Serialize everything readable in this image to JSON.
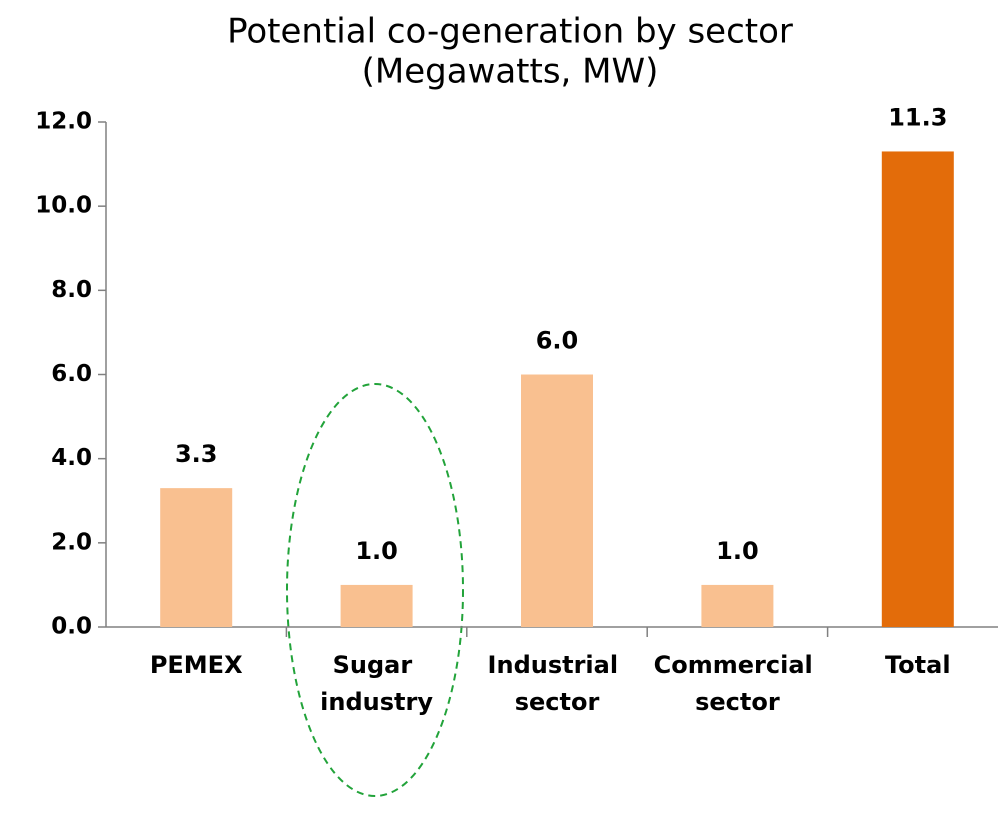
{
  "chart_data": {
    "type": "bar",
    "title": "Potential co-generation by sector",
    "subtitle": "(Megawatts, MW)",
    "categories": [
      "PEMEX",
      "Sugar industry",
      "Industrial sector",
      "Commercial sector",
      "Total"
    ],
    "values": [
      3.3,
      1.0,
      6.0,
      1.0,
      11.3
    ],
    "value_labels": [
      "3.3",
      "1.0",
      "6.0",
      "1.0",
      "11.3"
    ],
    "colors": [
      "#f9c090",
      "#f9c090",
      "#f9c090",
      "#f9c090",
      "#e36c0a"
    ],
    "ylim": [
      0,
      12
    ],
    "yticks": [
      {
        "value": 0,
        "label": "0.0"
      },
      {
        "value": 2,
        "label": "2.0"
      },
      {
        "value": 4,
        "label": "4.0"
      },
      {
        "value": 6,
        "label": "6.0"
      },
      {
        "value": 8,
        "label": "8.0"
      },
      {
        "value": 10,
        "label": "10.0"
      },
      {
        "value": 12,
        "label": "12.0"
      }
    ],
    "grid": false
  }
}
